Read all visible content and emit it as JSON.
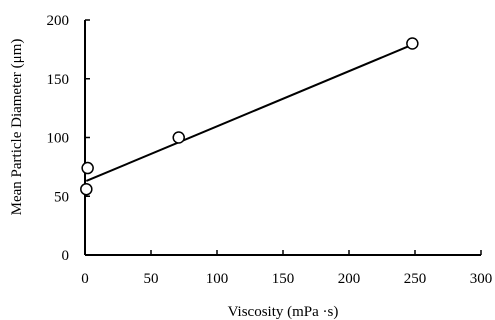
{
  "chart_data": {
    "type": "scatter",
    "xlabel": "Viscosity (mPa ·s)",
    "ylabel": "Mean Particle Diameter (μm)",
    "xlim": [
      0,
      300
    ],
    "ylim": [
      0,
      200
    ],
    "xticks": [
      "0",
      "50",
      "100",
      "150",
      "200",
      "250",
      "300"
    ],
    "yticks": [
      "0",
      "50",
      "100",
      "150",
      "200"
    ],
    "grid": false,
    "series": [
      {
        "points": [
          {
            "x": 1,
            "y": 56
          },
          {
            "x": 2,
            "y": 74
          },
          {
            "x": 71,
            "y": 100
          },
          {
            "x": 248,
            "y": 180
          }
        ],
        "marker": "open-circle",
        "color": "#000000"
      }
    ],
    "trendline": {
      "type": "linear",
      "from": {
        "x": 1,
        "y": 63
      },
      "to": {
        "x": 248,
        "y": 179
      },
      "color": "#000000"
    }
  }
}
